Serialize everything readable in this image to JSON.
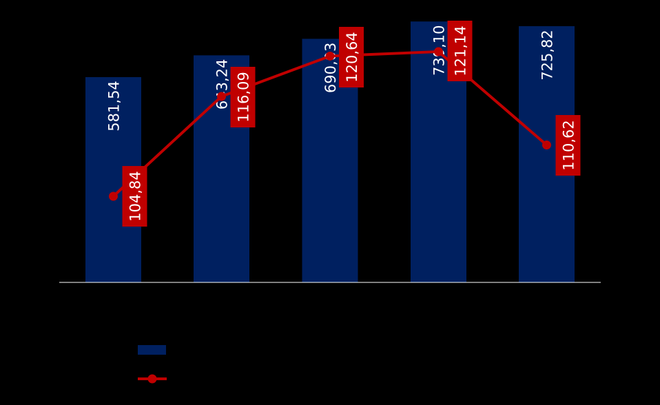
{
  "chart_data": {
    "type": "bar",
    "categories": [
      "",
      "",
      "",
      "",
      ""
    ],
    "series": [
      {
        "type": "bar",
        "values": [
          581.54,
          643.24,
          690.03,
          739.1,
          725.82
        ],
        "labels": [
          "581,54",
          "643,24",
          "690,03",
          "739,10",
          "725,82"
        ],
        "color": "#002060"
      },
      {
        "type": "line",
        "values": [
          104.84,
          116.09,
          120.64,
          121.14,
          110.62
        ],
        "labels": [
          "104,84",
          "116,09",
          "120,64",
          "121,14",
          "110,62"
        ],
        "color": "#C00000"
      }
    ],
    "legend": {
      "position": "bottom-left",
      "entries": [
        "",
        ""
      ]
    },
    "bar_axis_range": [
      0,
      800
    ],
    "line_axis_range": [
      80,
      125
    ],
    "grid": false,
    "colors": {
      "background": "#000000",
      "bar": "#002060",
      "line": "#C00000",
      "label_text": "#FFFFFF",
      "axis": "#FFFFFF"
    }
  }
}
